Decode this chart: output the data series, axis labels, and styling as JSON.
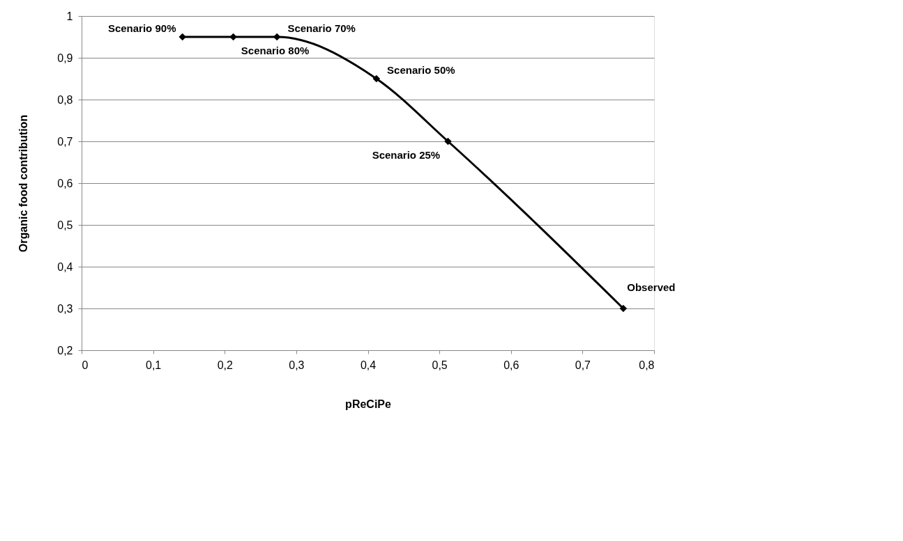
{
  "chart_data": {
    "type": "line",
    "xlabel": "pReCiPe",
    "ylabel": "Organic food contribution",
    "x": [
      0.141,
      0.212,
      0.273,
      0.412,
      0.512,
      0.757
    ],
    "series": [
      {
        "color": "#000000",
        "values": [
          0.95,
          0.95,
          0.95,
          0.85,
          0.7,
          0.3
        ]
      }
    ],
    "xlim": [
      0,
      0.8
    ],
    "xticks": [
      0,
      {
        "value": 0.1,
        "label": "0,1"
      },
      {
        "value": 0.2,
        "label": "0,2"
      },
      {
        "value": 0.3,
        "label": "0,3"
      },
      {
        "value": 0.4,
        "label": "0,4"
      },
      {
        "value": 0.5,
        "label": "0,5"
      },
      {
        "value": 0.6,
        "label": "0,6"
      },
      {
        "value": 0.7,
        "label": "0,7"
      },
      {
        "value": 0.8,
        "label": "0,8"
      }
    ],
    "ylim": [
      0.2,
      1
    ],
    "yticks": [
      {
        "value": 0.2,
        "label": "0,2"
      },
      {
        "value": 0.3,
        "label": "0,3"
      },
      {
        "value": 0.4,
        "label": "0,4"
      },
      {
        "value": 0.5,
        "label": "0,5"
      },
      {
        "value": 0.6,
        "label": "0,6"
      },
      {
        "value": 0.7,
        "label": "0,7"
      },
      {
        "value": 0.8,
        "label": "0,8"
      },
      {
        "value": 0.9,
        "label": "0,9"
      },
      1
    ],
    "annotations": [
      {
        "text": "Scenario 90%",
        "x": 0.141,
        "y": 0.95
      },
      {
        "text": "Scenario 80%",
        "x": 0.212,
        "y": 0.95
      },
      {
        "text": "Scenario 70%",
        "x": 0.273,
        "y": 0.95
      },
      {
        "text": "Scenario 50%",
        "x": 0.412,
        "y": 0.85
      },
      {
        "text": "Scenario 25%",
        "x": 0.512,
        "y": 0.7
      },
      {
        "text": "Observed",
        "x": 0.757,
        "y": 0.3
      }
    ],
    "grid": "y",
    "marker": "diamond",
    "line_style": "solid"
  }
}
